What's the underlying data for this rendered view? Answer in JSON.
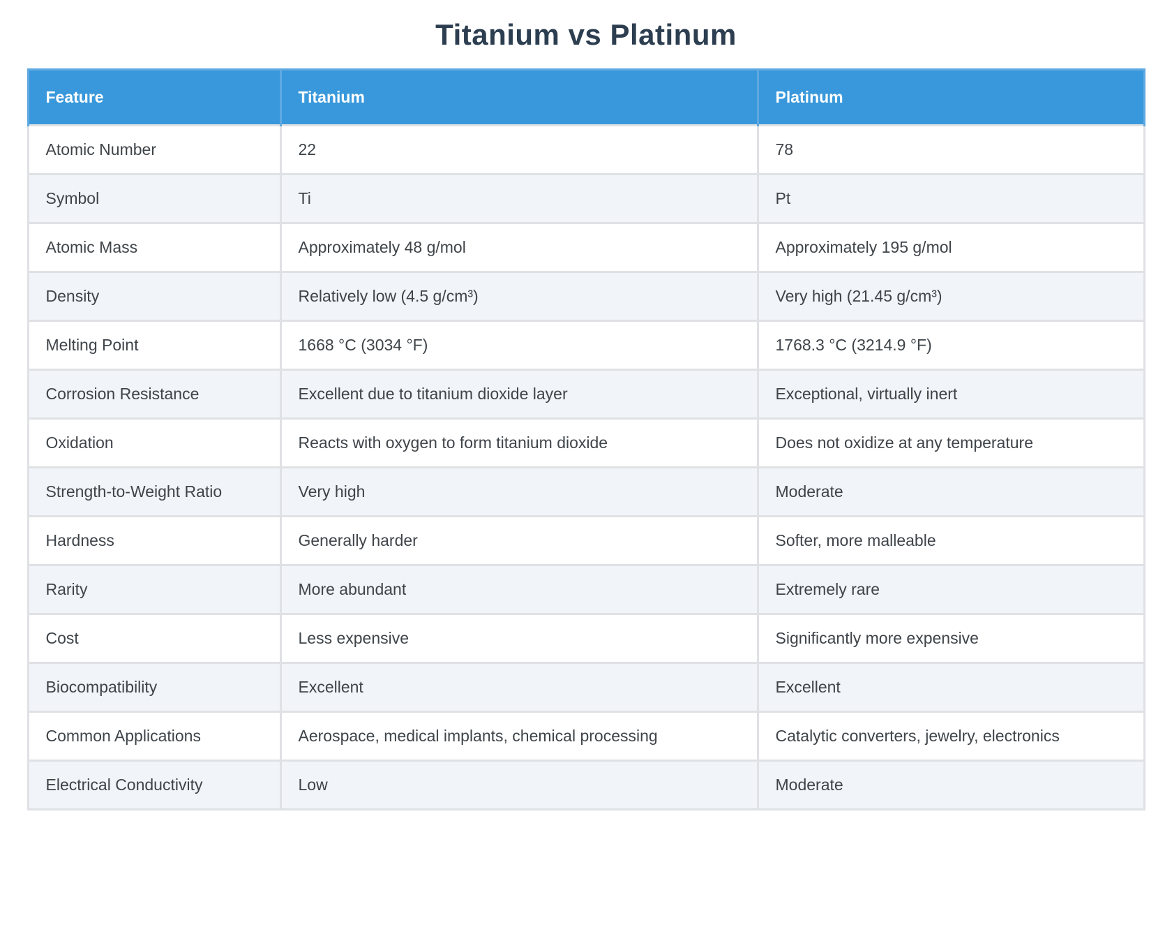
{
  "chart_data": {
    "type": "table",
    "title": "Titanium vs Platinum",
    "columns": [
      "Feature",
      "Titanium",
      "Platinum"
    ],
    "rows": [
      [
        "Atomic Number",
        "22",
        "78"
      ],
      [
        "Symbol",
        "Ti",
        "Pt"
      ],
      [
        "Atomic Mass",
        "Approximately 48 g/mol",
        "Approximately 195 g/mol"
      ],
      [
        "Density",
        "Relatively low (4.5 g/cm³)",
        "Very high (21.45 g/cm³)"
      ],
      [
        "Melting Point",
        "1668 °C (3034 °F)",
        "1768.3 °C (3214.9 °F)"
      ],
      [
        "Corrosion Resistance",
        "Excellent due to titanium dioxide layer",
        "Exceptional, virtually inert"
      ],
      [
        "Oxidation",
        "Reacts with oxygen to form titanium dioxide",
        "Does not oxidize at any temperature"
      ],
      [
        "Strength-to-Weight Ratio",
        "Very high",
        "Moderate"
      ],
      [
        "Hardness",
        "Generally harder",
        "Softer, more malleable"
      ],
      [
        "Rarity",
        "More abundant",
        "Extremely rare"
      ],
      [
        "Cost",
        "Less expensive",
        "Significantly more expensive"
      ],
      [
        "Biocompatibility",
        "Excellent",
        "Excellent"
      ],
      [
        "Common Applications",
        "Aerospace, medical implants, chemical processing",
        "Catalytic converters, jewelry, electronics"
      ],
      [
        "Electrical Conductivity",
        "Low",
        "Moderate"
      ]
    ]
  },
  "colors": {
    "header_bg": "#3898DB",
    "header_text": "#FFFFFF",
    "title_text": "#2C3E50",
    "body_text": "#3F4449",
    "stripe_bg": "#F1F4F8",
    "grid_line": "#DFE1E4",
    "header_divider": "#60A9E1"
  }
}
